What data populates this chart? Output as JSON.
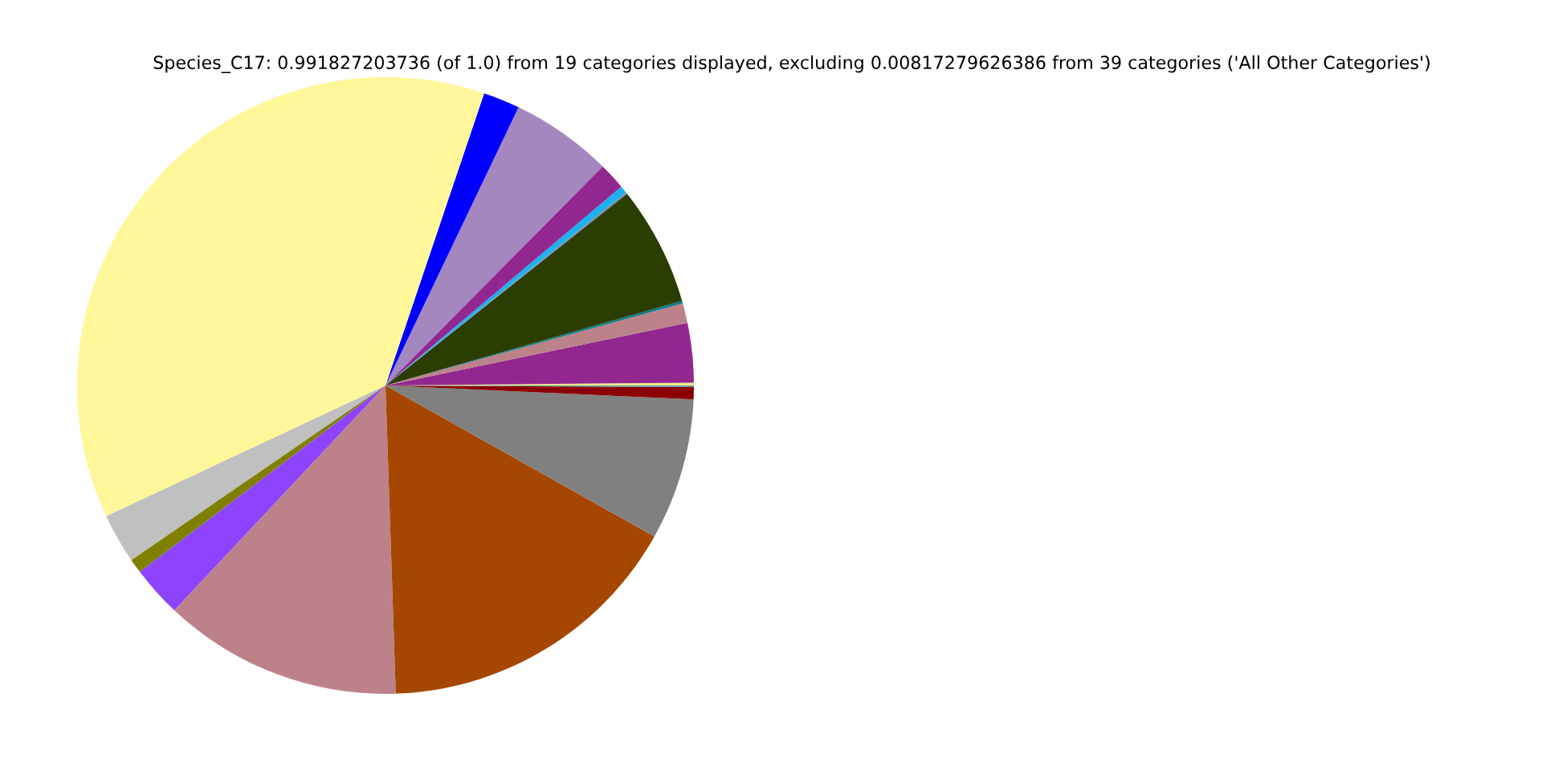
{
  "chart_data": {
    "type": "pie",
    "title": "Species_C17: 0.991827203736 (of 1.0) from 19 categories displayed, excluding 0.00817279626386 from 39 categories ('All Other Categories')",
    "categories": [
      null,
      null,
      null,
      null,
      null,
      null,
      null,
      null,
      null,
      null,
      null,
      null,
      null,
      null,
      null,
      null,
      null,
      null,
      null
    ],
    "values": [
      0.15,
      3.11,
      1.03,
      0.14,
      6.25,
      0.11,
      0.36,
      1.42,
      5.33,
      1.92,
      37.15,
      2.61,
      0.75,
      2.67,
      12.53,
      16.33,
      7.42,
      0.64,
      0.08
    ],
    "colors": [
      "#f0e68c",
      "#92278f",
      "#bc8289",
      "#0e7c8c",
      "#2b3d00",
      "#6f8faf",
      "#1ab2f0",
      "#92278f",
      "#a487bf",
      "#0000ff",
      "#fff799",
      "#c0c0c0",
      "#808000",
      "#8e44ff",
      "#bd8189",
      "#a54700",
      "#808080",
      "#8b0000",
      "#5f9ea0"
    ],
    "legend": false
  }
}
